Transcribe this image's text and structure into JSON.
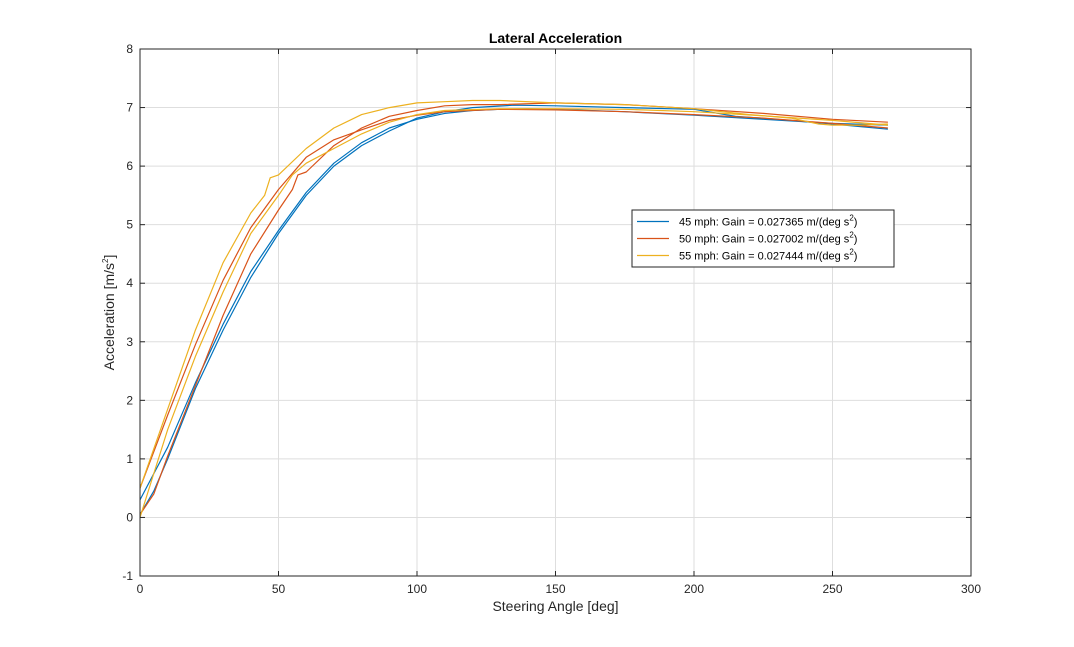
{
  "chart_data": {
    "type": "line",
    "title": "Lateral Acceleration",
    "xlabel": "Steering Angle [deg]",
    "ylabel": {
      "main": "Acceleration  [m/s",
      "sup": "2",
      "tail": "]"
    },
    "xlim": [
      0,
      300
    ],
    "ylim": [
      -1,
      8
    ],
    "xticks": [
      0,
      50,
      100,
      150,
      200,
      250,
      300
    ],
    "yticks": [
      -1,
      0,
      1,
      2,
      3,
      4,
      5,
      6,
      7,
      8
    ],
    "grid": true,
    "legend_position": "right-center",
    "series": [
      {
        "name": "45  mph:  Gain  =  0.027365  m/(deg  s",
        "name_sup": "2",
        "name_tail": ")",
        "color": "#0072BD",
        "up": [
          [
            0,
            0.3
          ],
          [
            10,
            1.2
          ],
          [
            20,
            2.3
          ],
          [
            30,
            3.3
          ],
          [
            40,
            4.2
          ],
          [
            50,
            4.9
          ],
          [
            60,
            5.55
          ],
          [
            70,
            6.05
          ],
          [
            80,
            6.4
          ],
          [
            90,
            6.65
          ],
          [
            100,
            6.8
          ],
          [
            110,
            6.9
          ],
          [
            120,
            6.95
          ],
          [
            130,
            6.97
          ],
          [
            140,
            6.98
          ],
          [
            150,
            6.97
          ],
          [
            175,
            6.93
          ],
          [
            200,
            6.87
          ],
          [
            225,
            6.8
          ],
          [
            250,
            6.73
          ],
          [
            270,
            6.7
          ]
        ],
        "down": [
          [
            270,
            6.63
          ],
          [
            250,
            6.72
          ],
          [
            230,
            6.8
          ],
          [
            215,
            6.85
          ],
          [
            200,
            6.97
          ],
          [
            175,
            7.0
          ],
          [
            150,
            7.03
          ],
          [
            135,
            7.04
          ],
          [
            120,
            7.0
          ],
          [
            110,
            6.93
          ],
          [
            100,
            6.82
          ],
          [
            90,
            6.6
          ],
          [
            80,
            6.35
          ],
          [
            70,
            6.0
          ],
          [
            60,
            5.5
          ],
          [
            50,
            4.85
          ],
          [
            40,
            4.1
          ],
          [
            30,
            3.2
          ],
          [
            20,
            2.2
          ],
          [
            10,
            1.0
          ],
          [
            5,
            0.45
          ],
          [
            0,
            0.05
          ]
        ]
      },
      {
        "name": "50  mph:  Gain  =  0.027002  m/(deg  s",
        "name_sup": "2",
        "name_tail": ")",
        "color": "#D95319",
        "up": [
          [
            0,
            0.05
          ],
          [
            5,
            0.4
          ],
          [
            10,
            1.05
          ],
          [
            20,
            2.25
          ],
          [
            30,
            3.45
          ],
          [
            40,
            4.5
          ],
          [
            50,
            5.25
          ],
          [
            55,
            5.6
          ],
          [
            57,
            5.85
          ],
          [
            60,
            5.9
          ],
          [
            70,
            6.35
          ],
          [
            80,
            6.65
          ],
          [
            90,
            6.85
          ],
          [
            100,
            6.95
          ],
          [
            110,
            7.03
          ],
          [
            120,
            7.05
          ],
          [
            130,
            7.05
          ],
          [
            150,
            7.08
          ],
          [
            175,
            7.05
          ],
          [
            200,
            6.98
          ],
          [
            225,
            6.9
          ],
          [
            250,
            6.8
          ],
          [
            270,
            6.75
          ]
        ],
        "down": [
          [
            270,
            6.65
          ],
          [
            250,
            6.73
          ],
          [
            225,
            6.82
          ],
          [
            200,
            6.88
          ],
          [
            175,
            6.93
          ],
          [
            150,
            6.96
          ],
          [
            130,
            6.97
          ],
          [
            110,
            6.93
          ],
          [
            100,
            6.87
          ],
          [
            90,
            6.78
          ],
          [
            80,
            6.62
          ],
          [
            70,
            6.45
          ],
          [
            60,
            6.15
          ],
          [
            50,
            5.6
          ],
          [
            40,
            4.95
          ],
          [
            30,
            4.05
          ],
          [
            20,
            2.95
          ],
          [
            10,
            1.75
          ],
          [
            0,
            0.5
          ]
        ]
      },
      {
        "name": "55  mph:  Gain  =  0.027444  m/(deg  s",
        "name_sup": "2",
        "name_tail": ")",
        "color": "#EDB120",
        "up": [
          [
            0,
            0.5
          ],
          [
            10,
            1.85
          ],
          [
            20,
            3.2
          ],
          [
            30,
            4.35
          ],
          [
            40,
            5.2
          ],
          [
            45,
            5.5
          ],
          [
            47,
            5.8
          ],
          [
            50,
            5.85
          ],
          [
            60,
            6.3
          ],
          [
            70,
            6.65
          ],
          [
            80,
            6.88
          ],
          [
            90,
            7.0
          ],
          [
            100,
            7.08
          ],
          [
            110,
            7.1
          ],
          [
            120,
            7.12
          ],
          [
            130,
            7.12
          ],
          [
            150,
            7.08
          ],
          [
            175,
            7.05
          ],
          [
            200,
            6.98
          ],
          [
            220,
            6.88
          ],
          [
            235,
            6.82
          ],
          [
            245,
            6.72
          ],
          [
            250,
            6.7
          ],
          [
            260,
            6.7
          ],
          [
            270,
            6.72
          ]
        ],
        "down": [
          [
            270,
            6.7
          ],
          [
            250,
            6.78
          ],
          [
            225,
            6.86
          ],
          [
            200,
            6.93
          ],
          [
            175,
            6.97
          ],
          [
            150,
            6.98
          ],
          [
            130,
            6.98
          ],
          [
            110,
            6.95
          ],
          [
            100,
            6.88
          ],
          [
            90,
            6.75
          ],
          [
            80,
            6.55
          ],
          [
            70,
            6.3
          ],
          [
            60,
            6.05
          ],
          [
            55,
            5.85
          ],
          [
            50,
            5.5
          ],
          [
            40,
            4.85
          ],
          [
            30,
            3.85
          ],
          [
            20,
            2.75
          ],
          [
            10,
            1.5
          ],
          [
            5,
            0.75
          ],
          [
            0,
            0.0
          ]
        ]
      }
    ]
  }
}
